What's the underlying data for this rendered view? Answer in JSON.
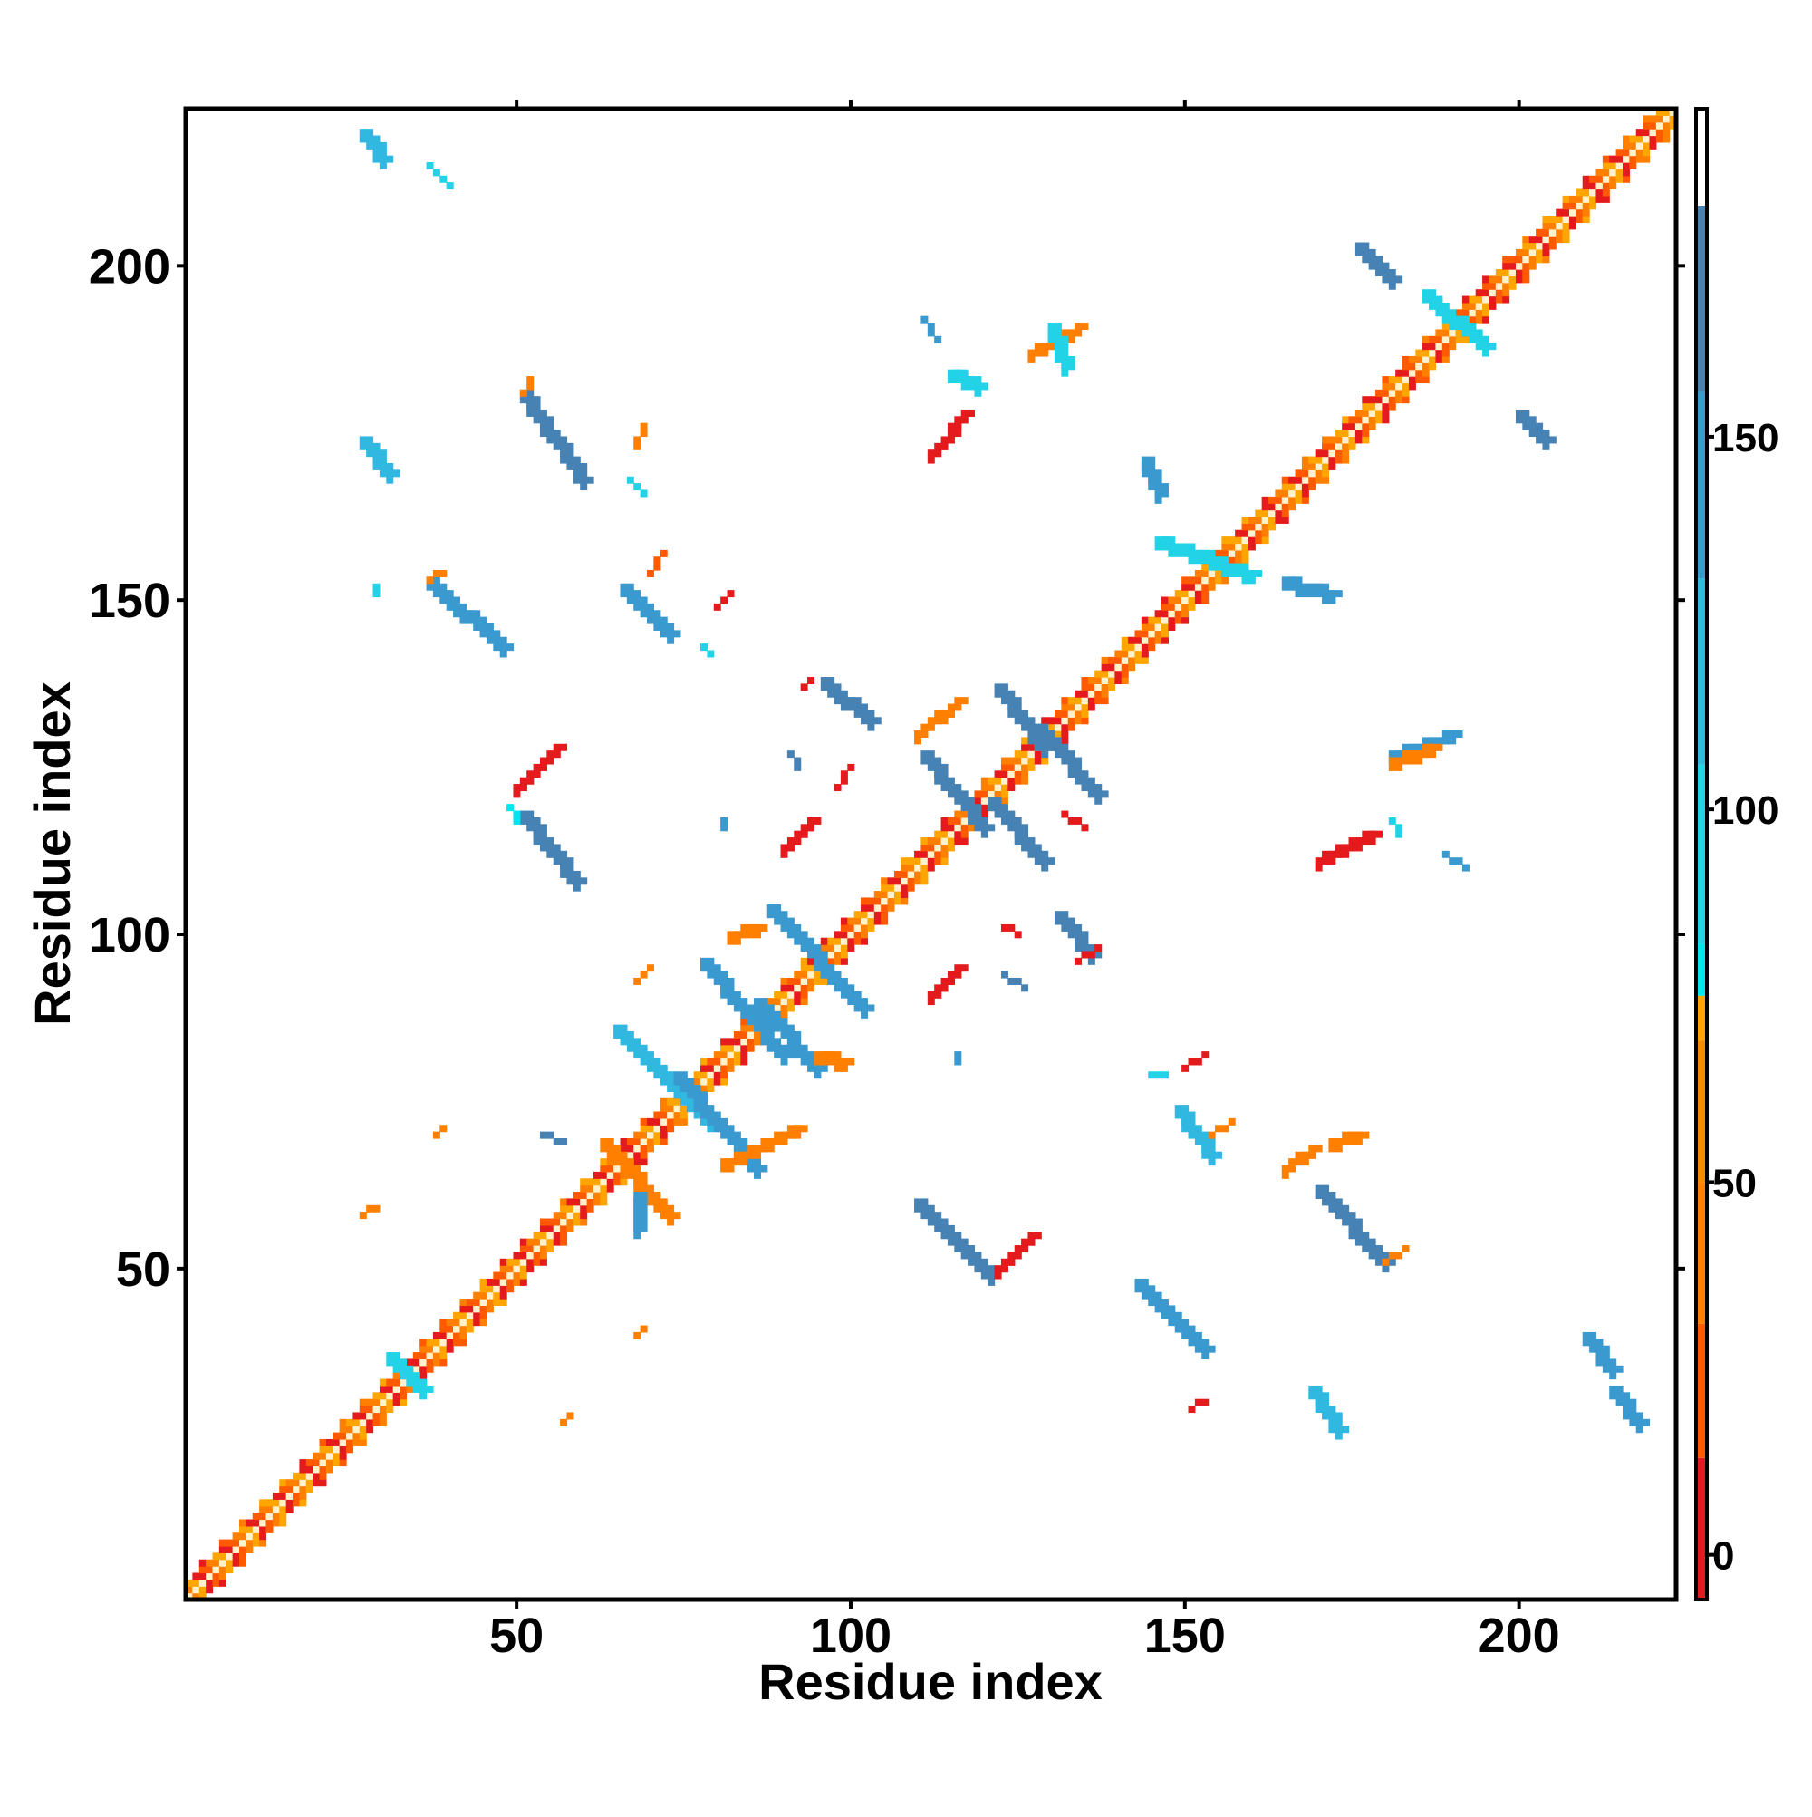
{
  "chart_data": {
    "type": "heatmap",
    "title": "",
    "xlabel": "Residue index",
    "ylabel": "Residue index",
    "xlim": [
      1,
      223
    ],
    "ylim": [
      1,
      223
    ],
    "x_ticks": [
      50,
      100,
      150,
      200
    ],
    "y_ticks": [
      50,
      100,
      150,
      200
    ],
    "x_tick_labels": [
      "50",
      "100",
      "150",
      "200"
    ],
    "y_tick_labels": [
      "50",
      "100",
      "150",
      "200"
    ],
    "colorbar": {
      "range": [
        -6,
        194
      ],
      "ticks": [
        0,
        50,
        100,
        150
      ],
      "tick_labels": [
        "0",
        "50",
        "100",
        "150"
      ],
      "bands": [
        {
          "from": -6,
          "to": 13,
          "color": "#e41a1c"
        },
        {
          "from": 13,
          "to": 31,
          "color": "#ff5a00"
        },
        {
          "from": 31,
          "to": 50,
          "color": "#ff7f00"
        },
        {
          "from": 50,
          "to": 69,
          "color": "#f08c00"
        },
        {
          "from": 69,
          "to": 75,
          "color": "#ffa500"
        },
        {
          "from": 75,
          "to": 82,
          "color": "#00e5ee"
        },
        {
          "from": 82,
          "to": 106,
          "color": "#22d3e8"
        },
        {
          "from": 106,
          "to": 131,
          "color": "#30b8e0"
        },
        {
          "from": 131,
          "to": 156,
          "color": "#3a9ad0"
        },
        {
          "from": 156,
          "to": 181,
          "color": "#4682b4"
        },
        {
          "from": 181,
          "to": 194,
          "color": "#ffffff"
        }
      ]
    },
    "grid": false,
    "legend": "colorbar-right",
    "diagonal": {
      "inner_color": "#fff2cc",
      "colors": [
        "#e41a1c",
        "#ff5a00",
        "#ff7f00",
        "#ffa500"
      ]
    },
    "segments": [
      {
        "from": [
          27,
          220
        ],
        "to": [
          30,
          216
        ],
        "color": "#30b8e0"
      },
      {
        "from": [
          37,
          215
        ],
        "to": [
          40,
          212
        ],
        "color": "#22d3e8"
      },
      {
        "from": [
          27,
          174
        ],
        "to": [
          31,
          169
        ],
        "color": "#30b8e0"
      },
      {
        "from": [
          51,
          181
        ],
        "to": [
          60,
          168
        ],
        "color": "#4682b4"
      },
      {
        "from": [
          51,
          181
        ],
        "to": [
          52,
          183
        ],
        "color": "#ff7f00"
      },
      {
        "from": [
          67,
          168
        ],
        "to": [
          69,
          166
        ],
        "color": "#22d3e8"
      },
      {
        "from": [
          68,
          173
        ],
        "to": [
          69,
          176
        ],
        "color": "#ff7f00"
      },
      {
        "from": [
          37,
          153
        ],
        "to": [
          48,
          143
        ],
        "color": "#3a9ad0"
      },
      {
        "from": [
          37,
          153
        ],
        "to": [
          39,
          154
        ],
        "color": "#ff7f00"
      },
      {
        "from": [
          66,
          152
        ],
        "to": [
          73,
          145
        ],
        "color": "#3a9ad0"
      },
      {
        "from": [
          70,
          154
        ],
        "to": [
          72,
          157
        ],
        "color": "#ff5a00"
      },
      {
        "from": [
          80,
          149
        ],
        "to": [
          82,
          151
        ],
        "color": "#e41a1c"
      },
      {
        "from": [
          78,
          143
        ],
        "to": [
          79,
          142
        ],
        "color": "#22d3e8"
      },
      {
        "from": [
          29,
          152
        ],
        "to": [
          29,
          151
        ],
        "color": "#22d3e8"
      },
      {
        "from": [
          51,
          118
        ],
        "to": [
          59,
          108
        ],
        "color": "#4682b4"
      },
      {
        "from": [
          50,
          122
        ],
        "to": [
          56,
          128
        ],
        "color": "#e41a1c"
      },
      {
        "from": [
          49,
          119
        ],
        "to": [
          50,
          117
        ],
        "color": "#00e5ee"
      },
      {
        "from": [
          63,
          69
        ],
        "to": [
          73,
          58
        ],
        "color": "#ff7f00"
      },
      {
        "from": [
          54,
          70
        ],
        "to": [
          57,
          69
        ],
        "color": "#4682b4"
      },
      {
        "from": [
          68,
          61
        ],
        "to": [
          68,
          56
        ],
        "color": "#3a9ad0"
      },
      {
        "from": [
          27,
          58
        ],
        "to": [
          29,
          59
        ],
        "color": "#ff7f00"
      },
      {
        "from": [
          38,
          70
        ],
        "to": [
          39,
          71
        ],
        "color": "#ff7f00"
      },
      {
        "from": [
          57,
          27
        ],
        "to": [
          58,
          28
        ],
        "color": "#ff7f00"
      },
      {
        "from": [
          68,
          40
        ],
        "to": [
          69,
          41
        ],
        "color": "#ff7f00"
      },
      {
        "from": [
          31,
          37
        ],
        "to": [
          36,
          32
        ],
        "color": "#22d3e8"
      },
      {
        "from": [
          65,
          86
        ],
        "to": [
          79,
          72
        ],
        "color": "#30b8e0"
      },
      {
        "from": [
          74,
          79
        ],
        "to": [
          86,
          65
        ],
        "color": "#3a9ad0"
      },
      {
        "from": [
          78,
          96
        ],
        "to": [
          90,
          82
        ],
        "color": "#3a9ad0"
      },
      {
        "from": [
          86,
          90
        ],
        "to": [
          95,
          80
        ],
        "color": "#3a9ad0"
      },
      {
        "from": [
          88,
          104
        ],
        "to": [
          102,
          89
        ],
        "color": "#3a9ad0"
      },
      {
        "from": [
          82,
          100
        ],
        "to": [
          86,
          101
        ],
        "color": "#ff7f00"
      },
      {
        "from": [
          68,
          93
        ],
        "to": [
          70,
          95
        ],
        "color": "#ff7f00"
      },
      {
        "from": [
          95,
          82
        ],
        "to": [
          99,
          81
        ],
        "color": "#ff7f00"
      },
      {
        "from": [
          81,
          66
        ],
        "to": [
          92,
          71
        ],
        "color": "#ff7f00"
      },
      {
        "from": [
          110,
          60
        ],
        "to": [
          121,
          49
        ],
        "color": "#4682b4"
      },
      {
        "from": [
          122,
          50
        ],
        "to": [
          127,
          55
        ],
        "color": "#e41a1c"
      },
      {
        "from": [
          111,
          127
        ],
        "to": [
          120,
          116
        ],
        "color": "#4682b4"
      },
      {
        "from": [
          121,
          120
        ],
        "to": [
          129,
          111
        ],
        "color": "#4682b4"
      },
      {
        "from": [
          122,
          137
        ],
        "to": [
          129,
          128
        ],
        "color": "#4682b4"
      },
      {
        "from": [
          128,
          131
        ],
        "to": [
          137,
          121
        ],
        "color": "#4682b4"
      },
      {
        "from": [
          110,
          130
        ],
        "to": [
          116,
          135
        ],
        "color": "#ff7f00"
      },
      {
        "from": [
          96,
          138
        ],
        "to": [
          103,
          132
        ],
        "color": "#4682b4"
      },
      {
        "from": [
          91,
          127
        ],
        "to": [
          92,
          125
        ],
        "color": "#4682b4"
      },
      {
        "from": [
          93,
          137
        ],
        "to": [
          94,
          138
        ],
        "color": "#e41a1c"
      },
      {
        "from": [
          98,
          122
        ],
        "to": [
          100,
          125
        ],
        "color": "#e41a1c"
      },
      {
        "from": [
          90,
          113
        ],
        "to": [
          94,
          117
        ],
        "color": "#e41a1c"
      },
      {
        "from": [
          81,
          117
        ],
        "to": [
          81,
          116
        ],
        "color": "#3a9ad0"
      },
      {
        "from": [
          132,
          118
        ],
        "to": [
          135,
          116
        ],
        "color": "#e41a1c"
      },
      {
        "from": [
          131,
          103
        ],
        "to": [
          136,
          97
        ],
        "color": "#4682b4"
      },
      {
        "from": [
          123,
          101
        ],
        "to": [
          125,
          100
        ],
        "color": "#e41a1c"
      },
      {
        "from": [
          123,
          94
        ],
        "to": [
          126,
          92
        ],
        "color": "#4682b4"
      },
      {
        "from": [
          134,
          96
        ],
        "to": [
          137,
          98
        ],
        "color": "#e41a1c"
      },
      {
        "from": [
          112,
          91
        ],
        "to": [
          116,
          95
        ],
        "color": "#e41a1c"
      },
      {
        "from": [
          116,
          82
        ],
        "to": [
          116,
          81
        ],
        "color": "#3a9ad0"
      },
      {
        "from": [
          112,
          172
        ],
        "to": [
          117,
          178
        ],
        "color": "#e41a1c"
      },
      {
        "from": [
          115,
          184
        ],
        "to": [
          119,
          182
        ],
        "color": "#22d3e8"
      },
      {
        "from": [
          111,
          192
        ],
        "to": [
          113,
          189
        ],
        "color": "#3a9ad0"
      },
      {
        "from": [
          127,
          187
        ],
        "to": [
          134,
          191
        ],
        "color": "#ff7f00"
      },
      {
        "from": [
          130,
          191
        ],
        "to": [
          132,
          185
        ],
        "color": "#22d3e8"
      },
      {
        "from": [
          144,
          171
        ],
        "to": [
          146,
          166
        ],
        "color": "#3a9ad0"
      },
      {
        "from": [
          146,
          159
        ],
        "to": [
          160,
          154
        ],
        "color": "#22d3e8"
      },
      {
        "from": [
          165,
          153
        ],
        "to": [
          172,
          151
        ],
        "color": "#3a9ad0"
      },
      {
        "from": [
          176,
          203
        ],
        "to": [
          181,
          198
        ],
        "color": "#4682b4"
      },
      {
        "from": [
          200,
          178
        ],
        "to": [
          204,
          174
        ],
        "color": "#4682b4"
      },
      {
        "from": [
          186,
          196
        ],
        "to": [
          195,
          188
        ],
        "color": "#22d3e8"
      },
      {
        "from": [
          181,
          127
        ],
        "to": [
          190,
          130
        ],
        "color": "#3a9ad0"
      },
      {
        "from": [
          181,
          126
        ],
        "to": [
          187,
          128
        ],
        "color": "#ff7f00"
      },
      {
        "from": [
          181,
          117
        ],
        "to": [
          182,
          115
        ],
        "color": "#22d3e8"
      },
      {
        "from": [
          170,
          111
        ],
        "to": [
          178,
          115
        ],
        "color": "#e41a1c"
      },
      {
        "from": [
          189,
          112
        ],
        "to": [
          192,
          110
        ],
        "color": "#3a9ad0"
      },
      {
        "from": [
          145,
          79
        ],
        "to": [
          147,
          79
        ],
        "color": "#22d3e8"
      },
      {
        "from": [
          150,
          80
        ],
        "to": [
          153,
          82
        ],
        "color": "#e41a1c"
      },
      {
        "from": [
          149,
          74
        ],
        "to": [
          154,
          67
        ],
        "color": "#30b8e0"
      },
      {
        "from": [
          154,
          70
        ],
        "to": [
          157,
          72
        ],
        "color": "#ff7f00"
      },
      {
        "from": [
          170,
          62
        ],
        "to": [
          180,
          51
        ],
        "color": "#4682b4"
      },
      {
        "from": [
          165,
          65
        ],
        "to": [
          169,
          68
        ],
        "color": "#ff7f00"
      },
      {
        "from": [
          172,
          69
        ],
        "to": [
          176,
          70
        ],
        "color": "#ff7f00"
      },
      {
        "from": [
          180,
          51
        ],
        "to": [
          183,
          53
        ],
        "color": "#ff7f00"
      },
      {
        "from": [
          143,
          48
        ],
        "to": [
          153,
          38
        ],
        "color": "#3a9ad0"
      },
      {
        "from": [
          151,
          29
        ],
        "to": [
          153,
          30
        ],
        "color": "#e41a1c"
      },
      {
        "from": [
          169,
          32
        ],
        "to": [
          173,
          26
        ],
        "color": "#30b8e0"
      },
      {
        "from": [
          210,
          40
        ],
        "to": [
          214,
          35
        ],
        "color": "#3a9ad0"
      },
      {
        "from": [
          214,
          32
        ],
        "to": [
          218,
          27
        ],
        "color": "#3a9ad0"
      }
    ]
  }
}
